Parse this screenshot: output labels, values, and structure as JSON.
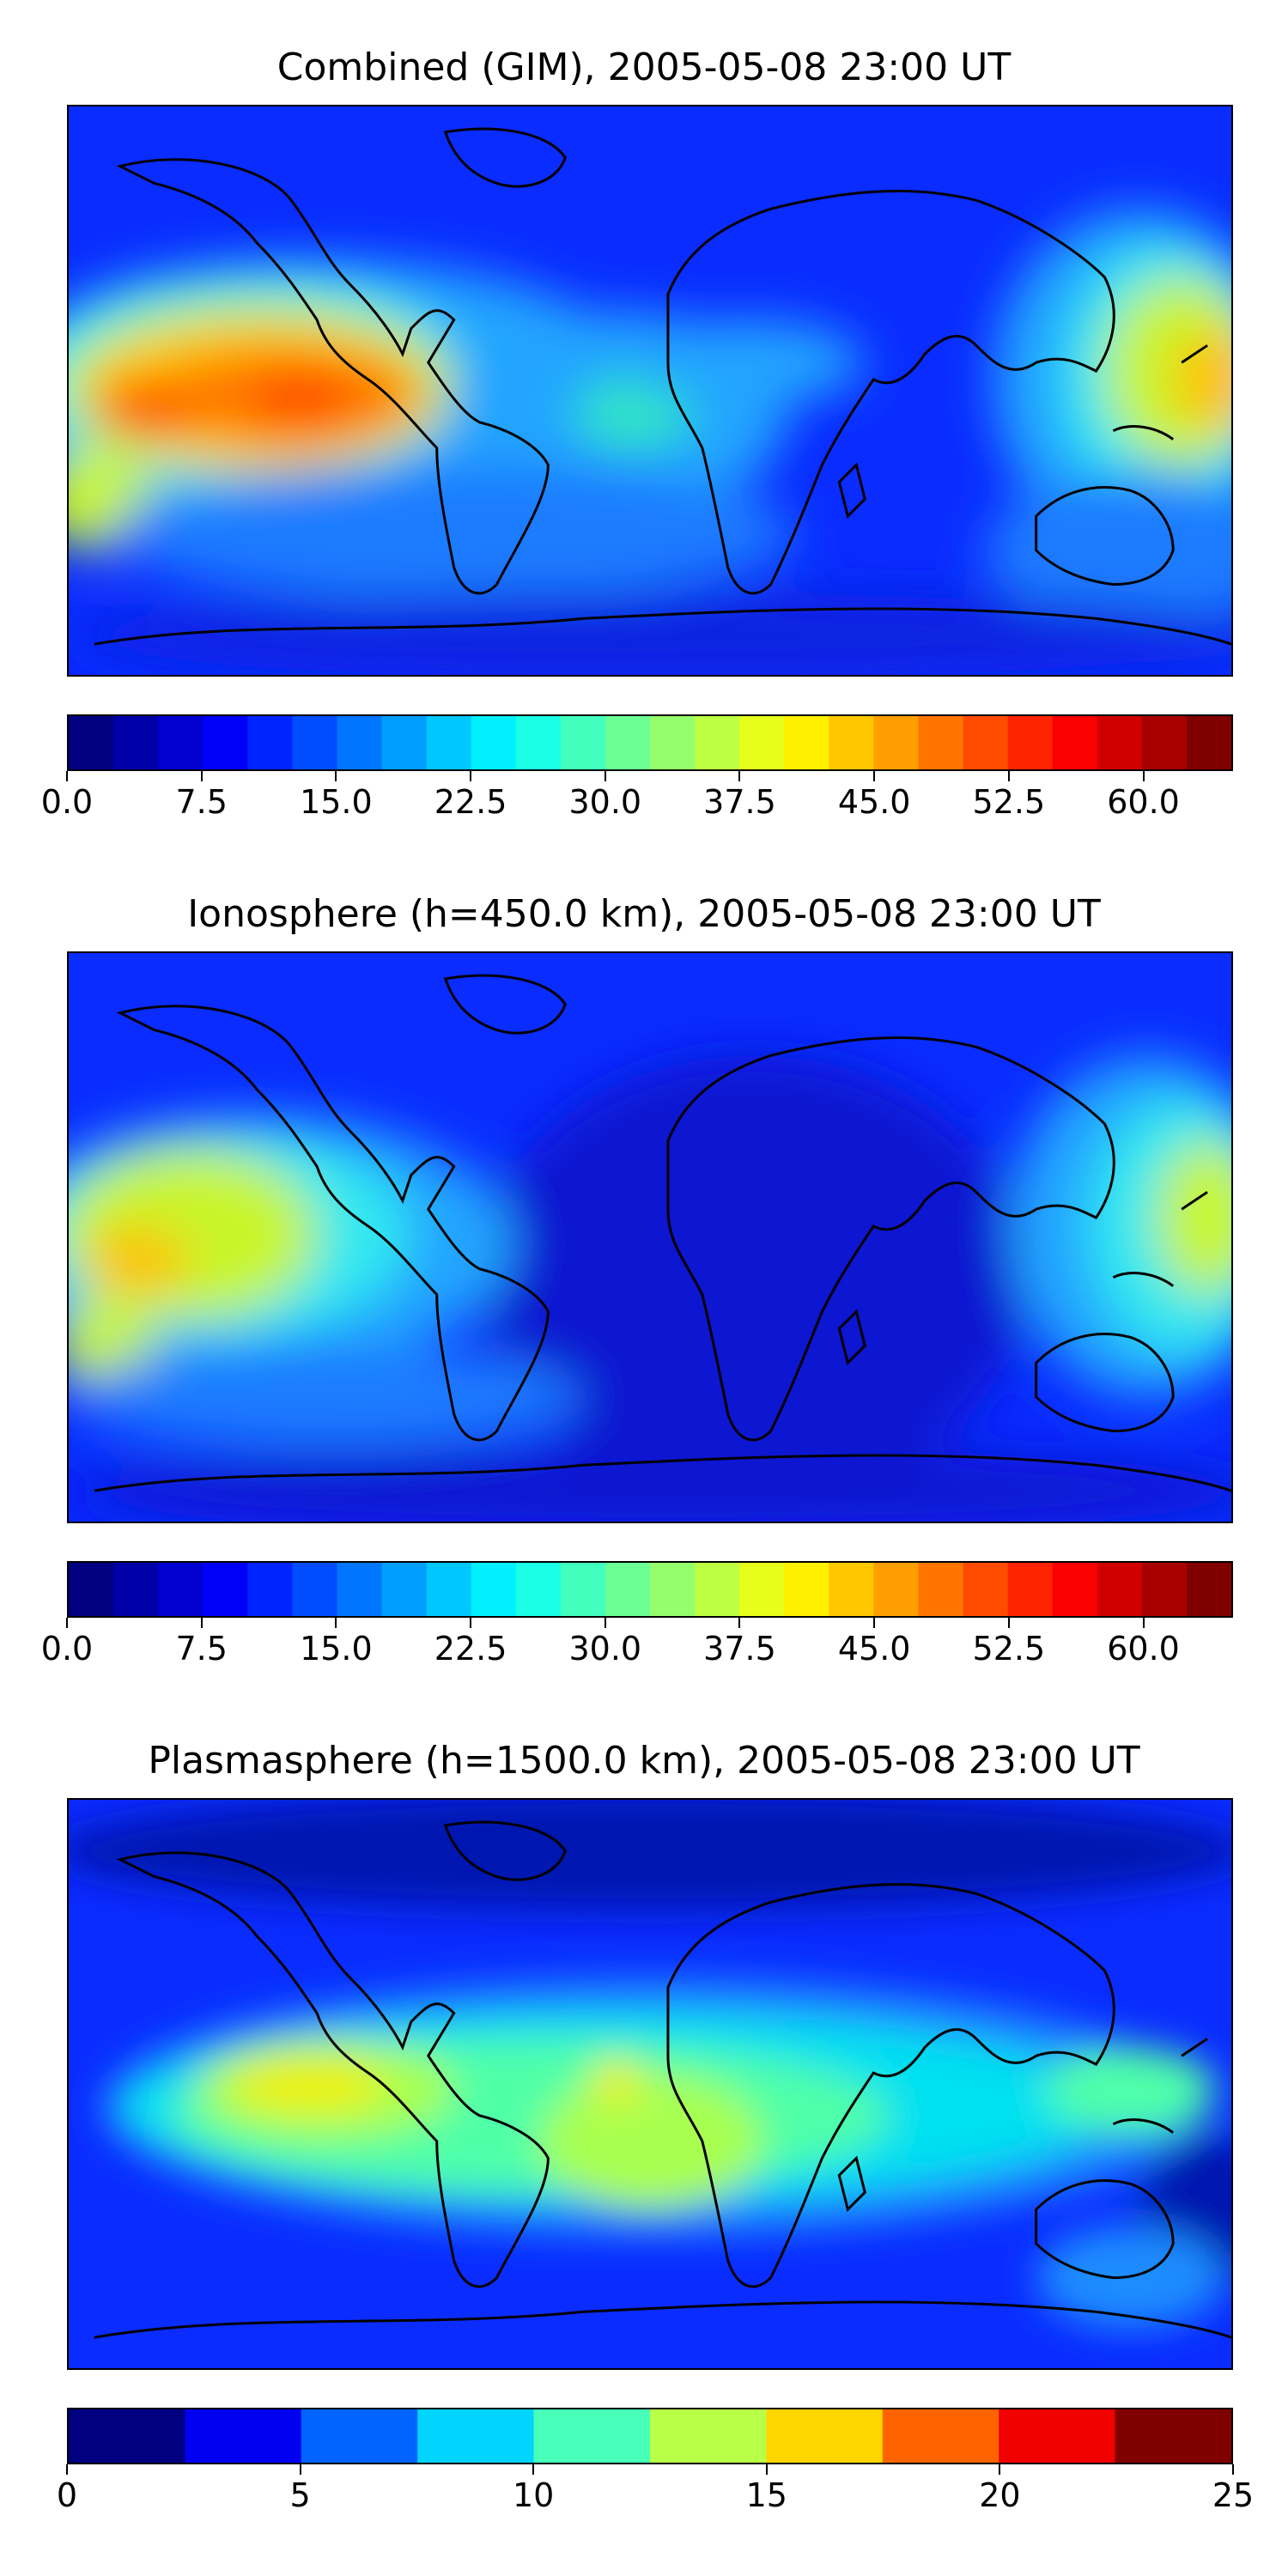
{
  "panels": [
    {
      "title": "Combined (GIM), 2005-05-08 23:00 UT",
      "colorbar": {
        "min": 0,
        "max": 65,
        "levels": 26,
        "ticks": [
          "0.0",
          "7.5",
          "15.0",
          "22.5",
          "30.0",
          "37.5",
          "45.0",
          "52.5",
          "60.0"
        ],
        "tick_values": [
          0,
          7.5,
          15,
          22.5,
          30,
          37.5,
          45,
          52.5,
          60
        ]
      }
    },
    {
      "title": "Ionosphere  (h=450.0 km), 2005-05-08 23:00 UT",
      "colorbar": {
        "min": 0,
        "max": 65,
        "levels": 26,
        "ticks": [
          "0.0",
          "7.5",
          "15.0",
          "22.5",
          "30.0",
          "37.5",
          "45.0",
          "52.5",
          "60.0"
        ],
        "tick_values": [
          0,
          7.5,
          15,
          22.5,
          30,
          37.5,
          45,
          52.5,
          60
        ]
      }
    },
    {
      "title": "Plasmasphere (h=1500.0 km), 2005-05-08 23:00 UT",
      "colorbar": {
        "min": 0,
        "max": 25,
        "levels": 10,
        "ticks": [
          "0",
          "5",
          "10",
          "15",
          "20",
          "25"
        ],
        "tick_values": [
          0,
          5,
          10,
          15,
          20,
          25
        ]
      }
    }
  ],
  "colormap": "jet",
  "coastline_color": "#000000"
}
